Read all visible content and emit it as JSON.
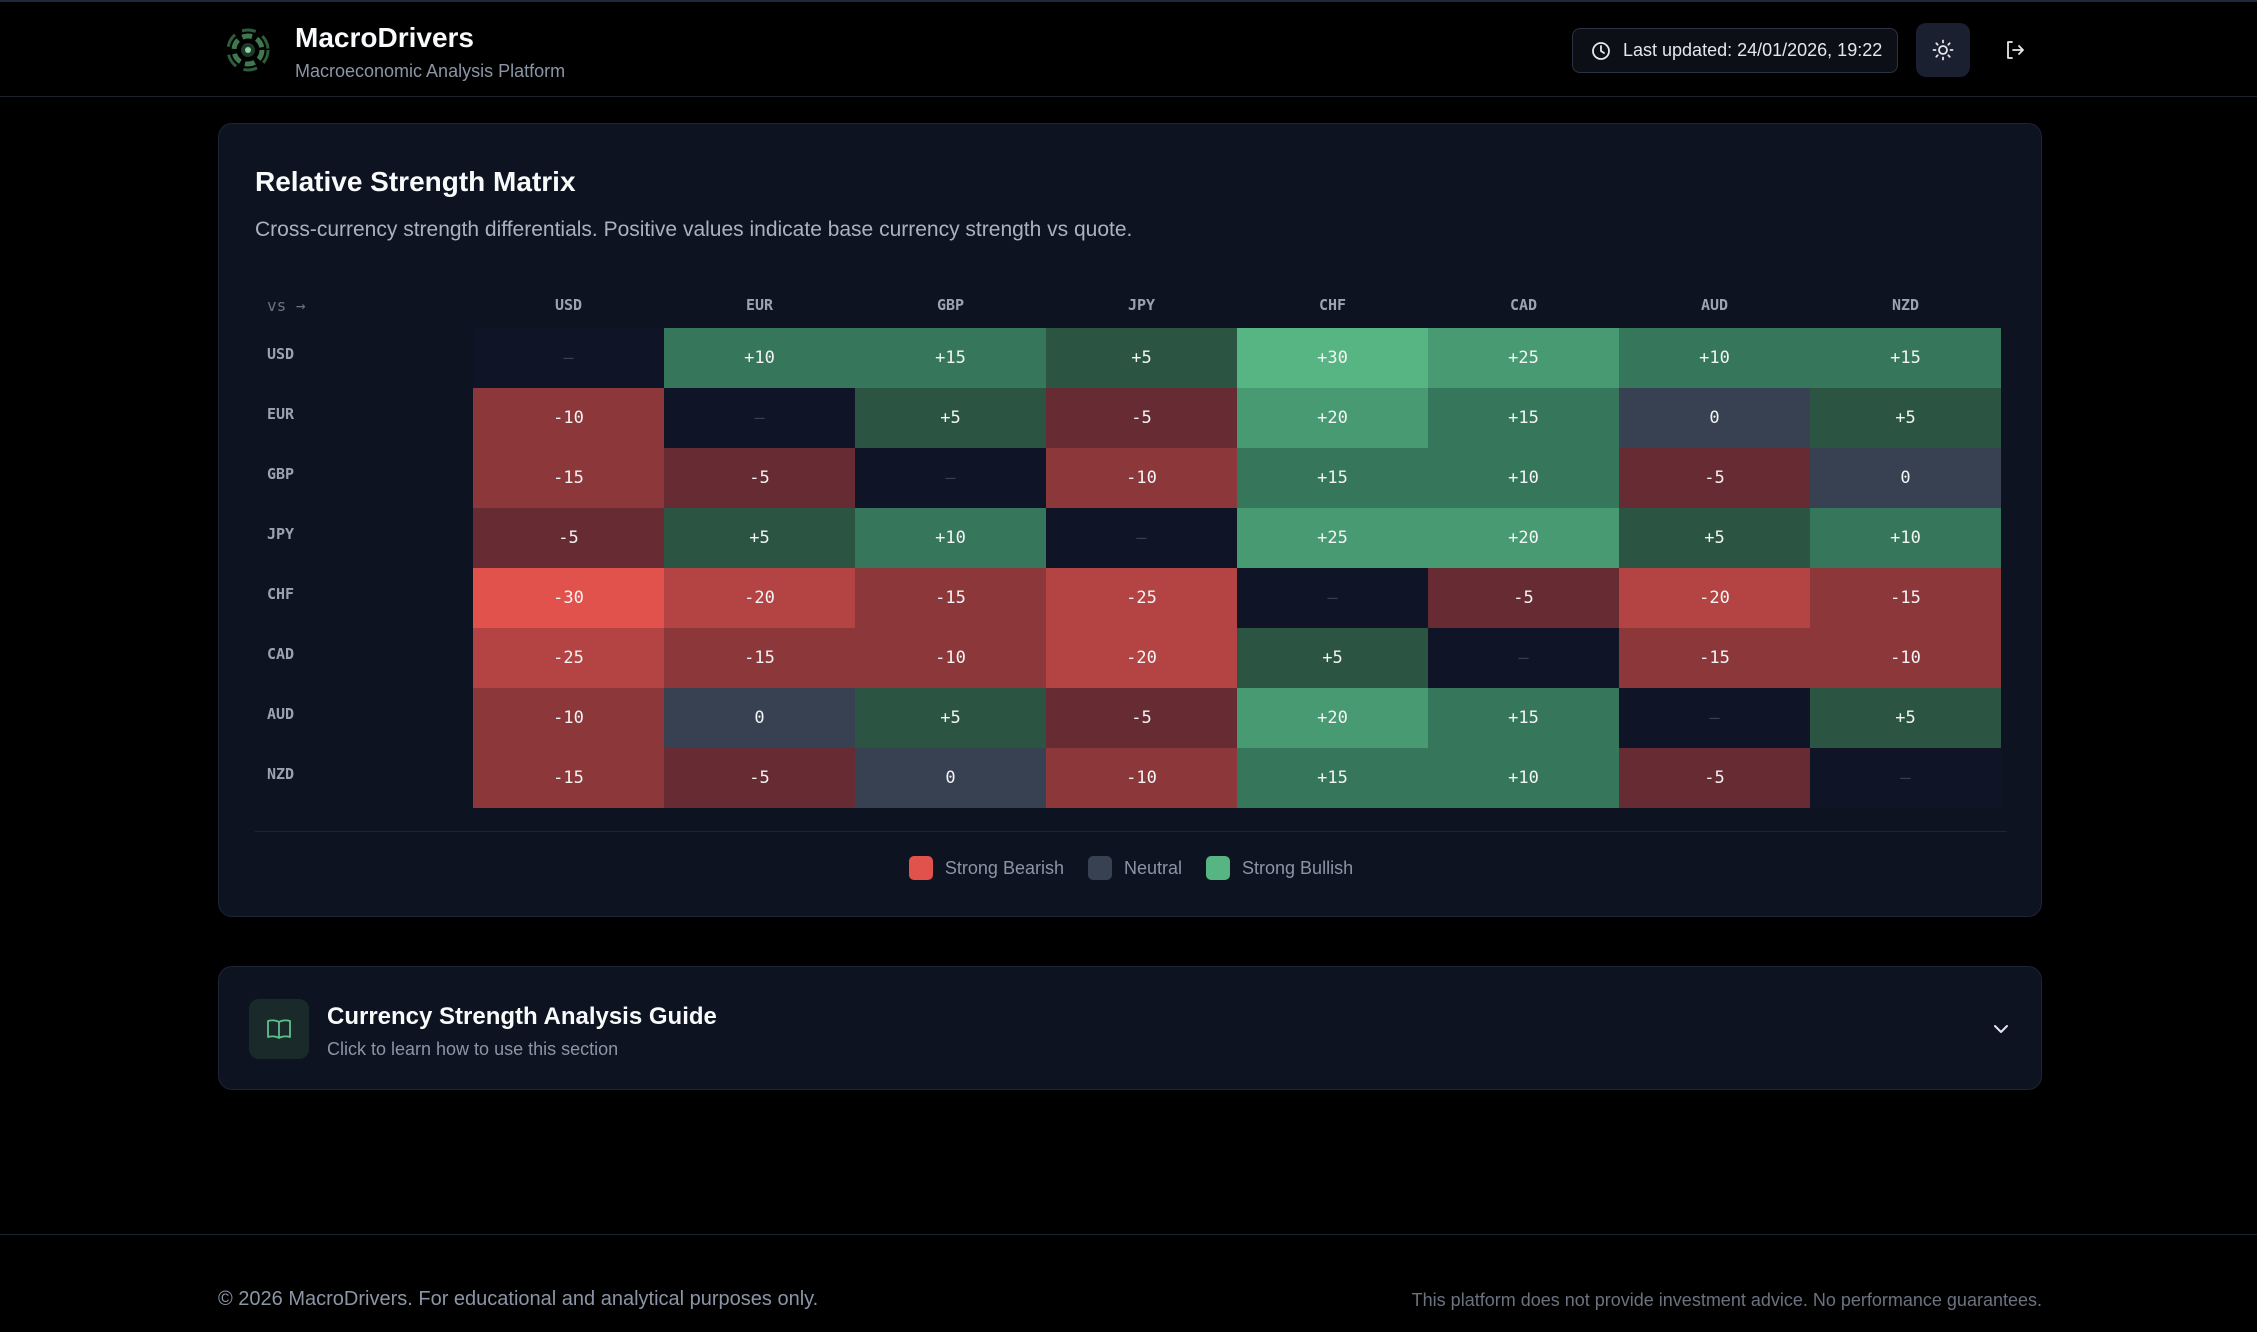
{
  "header": {
    "app_title": "MacroDrivers",
    "app_subtitle": "Macroeconomic Analysis Platform",
    "last_updated": "Last updated: 24/01/2026, 19:22",
    "icons": [
      "clock-icon",
      "sun-icon",
      "logout-icon"
    ]
  },
  "matrix": {
    "title": "Relative Strength Matrix",
    "description": "Cross-currency strength differentials. Positive values indicate base currency strength vs quote.",
    "corner_label": "vs →",
    "diagonal_symbol": "—",
    "currencies": [
      "USD",
      "EUR",
      "GBP",
      "JPY",
      "CHF",
      "CAD",
      "AUD",
      "NZD"
    ],
    "values": [
      [
        null,
        10,
        15,
        5,
        30,
        25,
        10,
        15
      ],
      [
        -10,
        null,
        5,
        -5,
        20,
        15,
        0,
        5
      ],
      [
        -15,
        -5,
        null,
        -10,
        15,
        10,
        -5,
        0
      ],
      [
        -5,
        5,
        10,
        null,
        25,
        20,
        5,
        10
      ],
      [
        -30,
        -20,
        -15,
        -25,
        null,
        -5,
        -20,
        -15
      ],
      [
        -25,
        -15,
        -10,
        -20,
        5,
        null,
        -15,
        -10
      ],
      [
        -10,
        0,
        5,
        -5,
        20,
        15,
        null,
        5
      ],
      [
        -15,
        -5,
        0,
        -10,
        15,
        10,
        -5,
        null
      ]
    ],
    "legend": [
      {
        "label": "Strong Bearish",
        "color": "#e0524b"
      },
      {
        "label": "Neutral",
        "color": "#374151"
      },
      {
        "label": "Strong Bullish",
        "color": "#56b582"
      }
    ]
  },
  "colors": {
    "diagonal": "#0f1526",
    "neutral": "#374151",
    "pos5": "#2c5443",
    "pos10": "#36765b",
    "pos15": "#36765b",
    "pos20": "#479a72",
    "pos25": "#479a72",
    "pos30": "#56b582",
    "neg5": "#672c33",
    "neg10": "#8c383b",
    "neg15": "#8c383b",
    "neg20": "#b34443",
    "neg25": "#b34443",
    "neg30": "#e0524b"
  },
  "guide": {
    "title": "Currency Strength Analysis Guide",
    "subtitle": "Click to learn how to use this section"
  },
  "footer": {
    "left": "© 2026 MacroDrivers. For educational and analytical purposes only.",
    "right": "This platform does not provide investment advice. No performance guarantees."
  }
}
